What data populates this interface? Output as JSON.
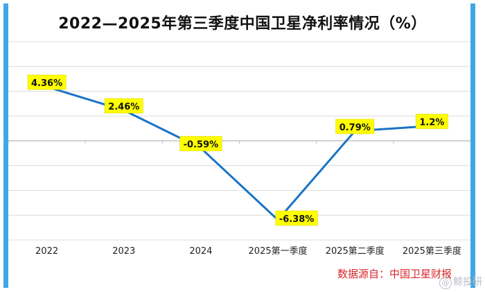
{
  "chart_data": {
    "type": "line",
    "title": "2022—2025年第三季度中国卫星净利率情况（%）",
    "categories": [
      "2022",
      "2023",
      "2024",
      "2025第一季度",
      "2025第二季度",
      "2025第三季度"
    ],
    "values": [
      4.36,
      2.46,
      -0.59,
      -6.38,
      0.79,
      1.2
    ],
    "data_labels": [
      "4.36%",
      "2.46%",
      "-0.59%",
      "-6.38%",
      "0.79%",
      "1.2%"
    ],
    "ylim": [
      -8,
      8
    ],
    "grid": true,
    "xlabel": "",
    "ylabel": ""
  },
  "source": "数据源自：中国卫星财报",
  "watermark": "鲸投研",
  "colors": {
    "line": "#1a73c6",
    "label_bg": "#ffff00",
    "grid": "#dcdcdc",
    "axis": "#b8b8b8",
    "frame": "#3fa7e6",
    "source": "#d9262b"
  }
}
